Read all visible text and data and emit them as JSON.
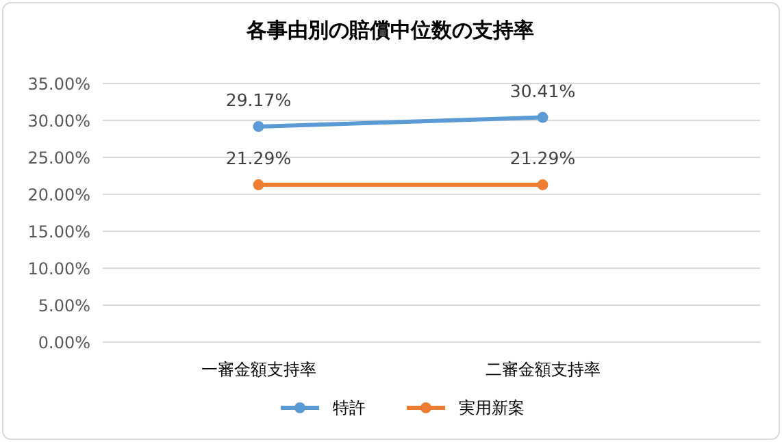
{
  "chart_data": {
    "type": "line",
    "title": "各事由別の賠償中位数の支持率",
    "categories": [
      "一審金額支持率",
      "二審金額支持率"
    ],
    "series": [
      {
        "name": "特許",
        "color": "#5b9bd5",
        "values": [
          29.17,
          30.41
        ],
        "value_labels": [
          "29.17%",
          "30.41%"
        ]
      },
      {
        "name": "実用新案",
        "color": "#ed7d31",
        "values": [
          21.29,
          21.29
        ],
        "value_labels": [
          "21.29%",
          "21.29%"
        ]
      }
    ],
    "ylim": [
      0,
      35
    ],
    "yticks": [
      {
        "value": 0,
        "label": "0.00%"
      },
      {
        "value": 5,
        "label": "5.00%"
      },
      {
        "value": 10,
        "label": "10.00%"
      },
      {
        "value": 15,
        "label": "15.00%"
      },
      {
        "value": 20,
        "label": "20.00%"
      },
      {
        "value": 25,
        "label": "25.00%"
      },
      {
        "value": 30,
        "label": "30.00%"
      },
      {
        "value": 35,
        "label": "35.00%"
      }
    ],
    "grid": "y",
    "legend": "bottom",
    "marker": "circle",
    "line_style": "solid"
  }
}
